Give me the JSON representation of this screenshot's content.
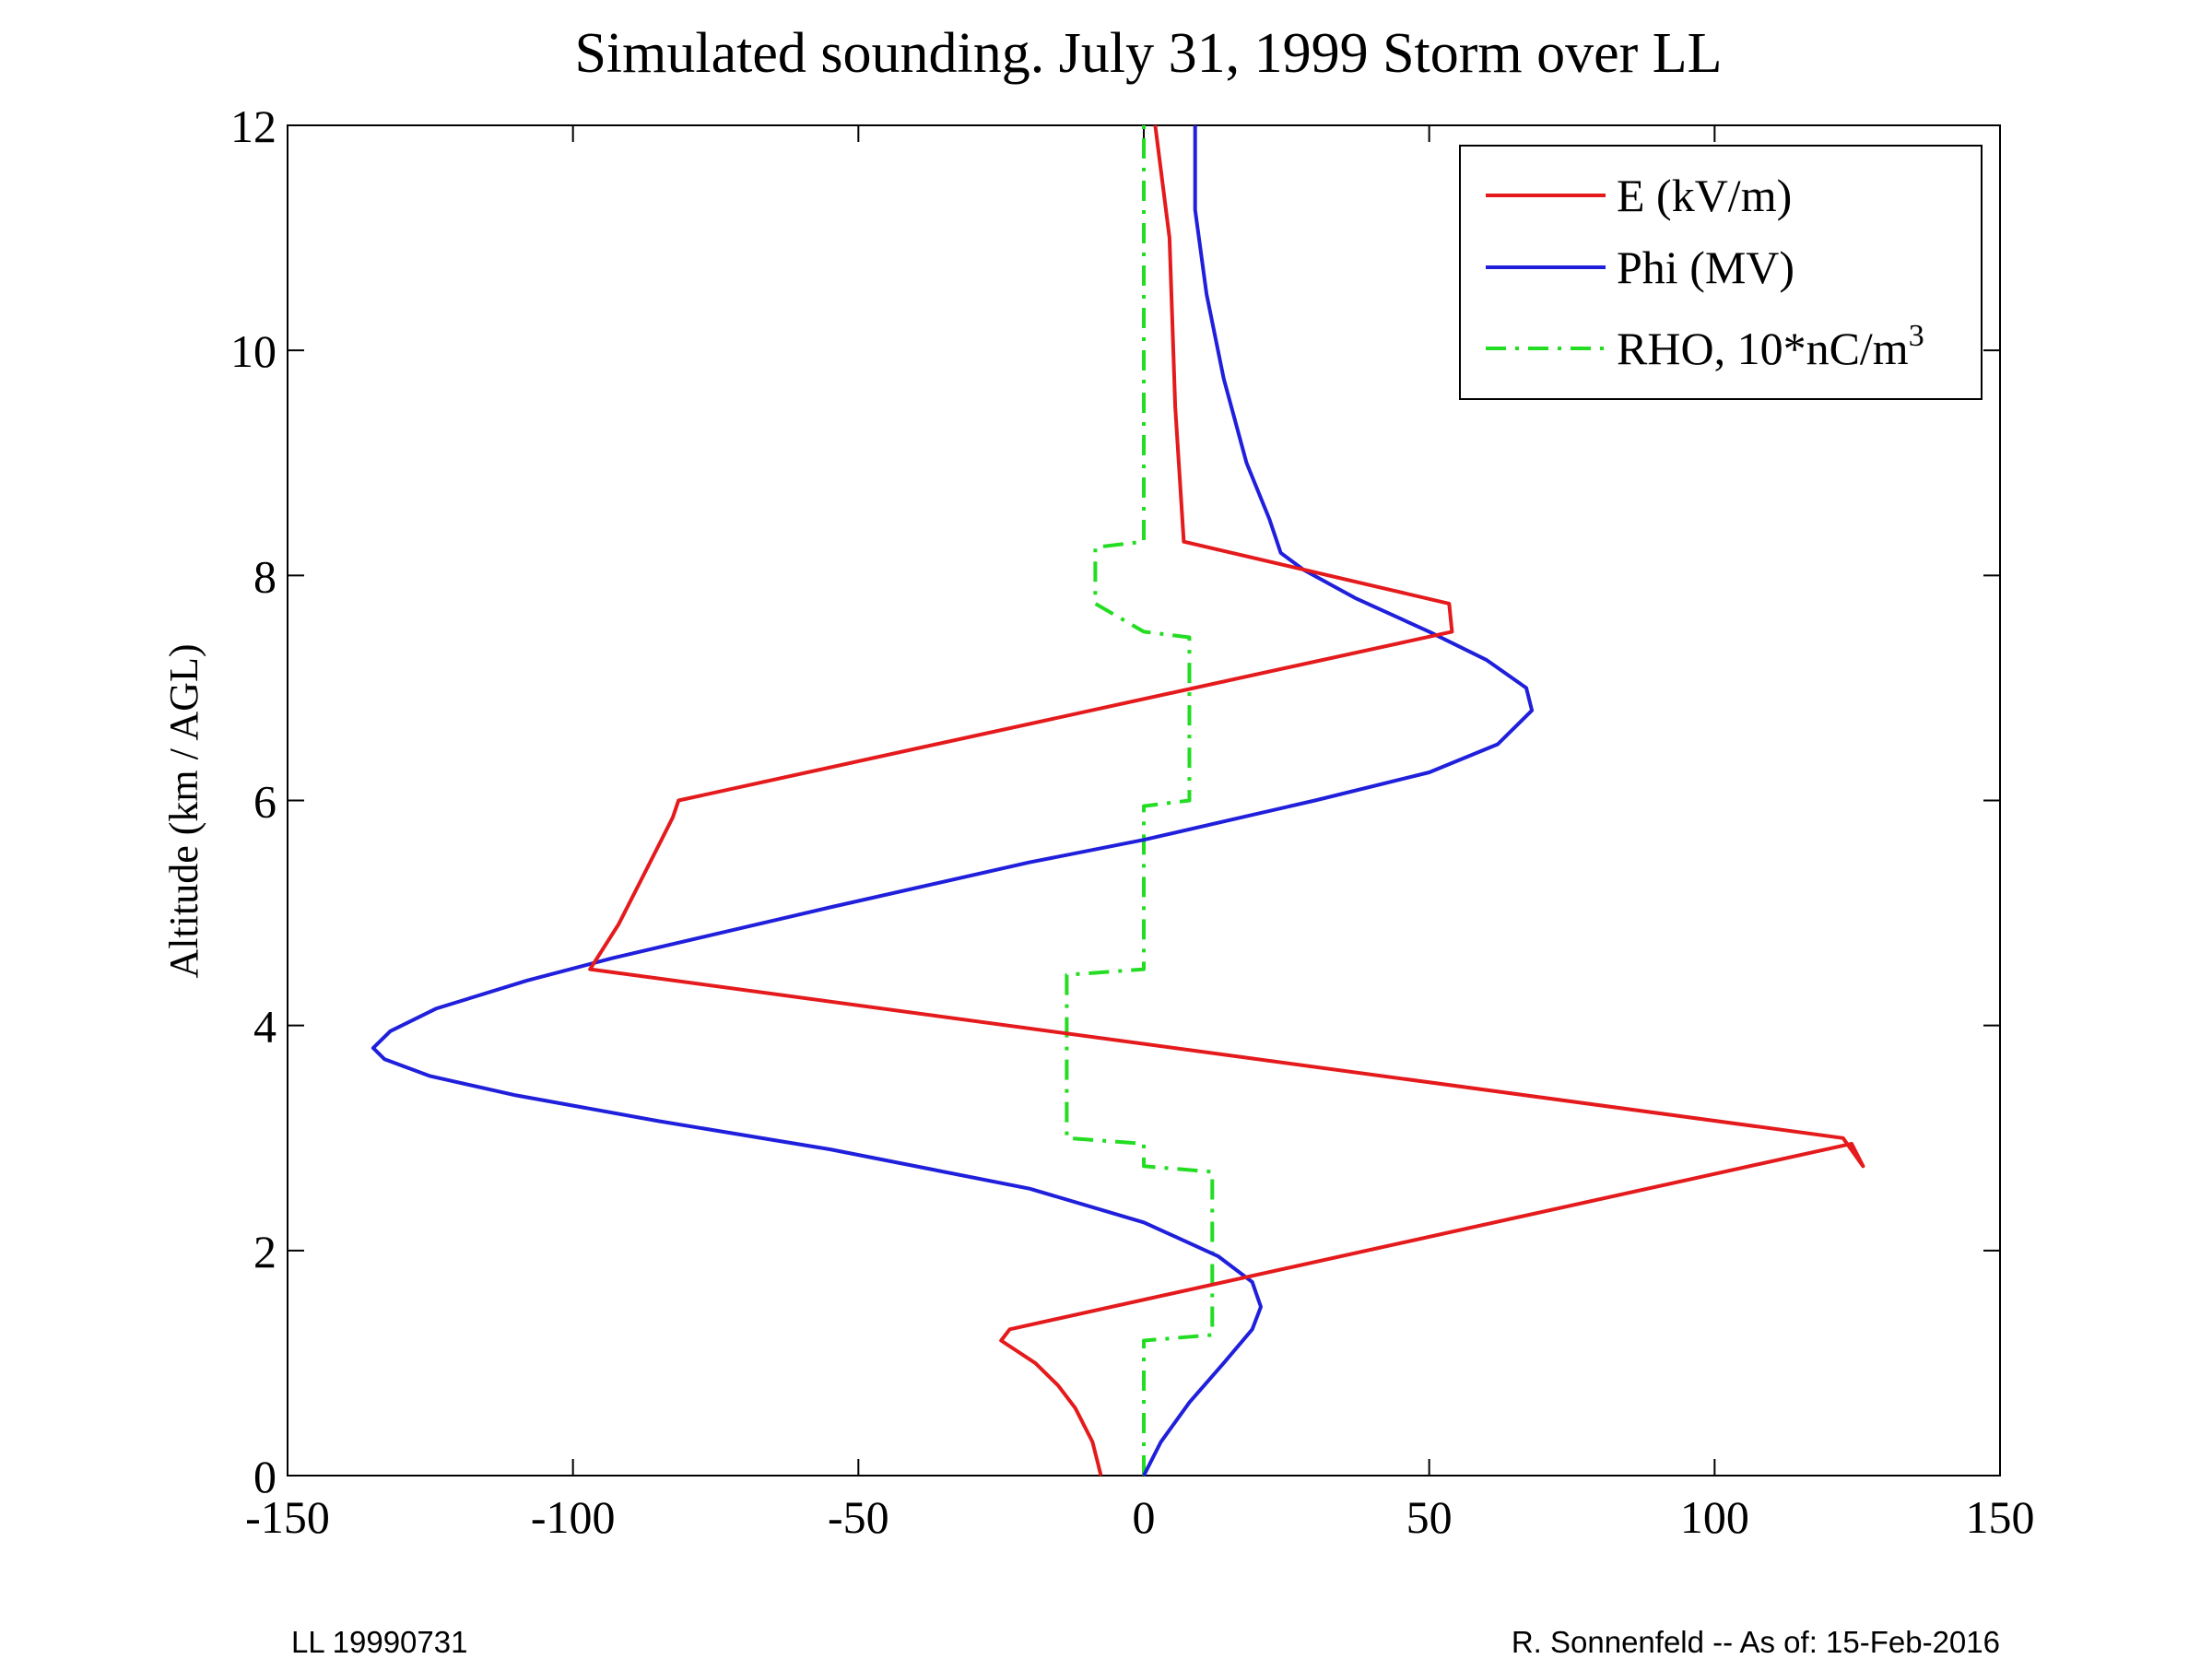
{
  "chart_data": {
    "type": "line",
    "title": "Simulated sounding.  July 31, 1999 Storm over LL",
    "xlabel": "",
    "ylabel": "Altitude (km / AGL)",
    "xlim": [
      -150,
      150
    ],
    "ylim": [
      0,
      12
    ],
    "xticks": [
      -150,
      -100,
      -50,
      0,
      50,
      100,
      150
    ],
    "yticks": [
      0,
      2,
      4,
      6,
      8,
      10,
      12
    ],
    "grid": false,
    "legend_position": "top-right",
    "series": [
      {
        "name": "E (kV/m)",
        "color": "#e41a1c",
        "style": "solid",
        "points": [
          [
            -7.5,
            0.0
          ],
          [
            -8,
            0.1
          ],
          [
            -9,
            0.3
          ],
          [
            -12,
            0.6
          ],
          [
            -15,
            0.8
          ],
          [
            -19,
            1.0
          ],
          [
            -25,
            1.2
          ],
          [
            -23.5,
            1.3
          ],
          [
            124,
            2.95
          ],
          [
            126,
            2.75
          ],
          [
            122.5,
            3.0
          ],
          [
            -97,
            4.5
          ],
          [
            -92,
            4.9
          ],
          [
            -88,
            5.3
          ],
          [
            -85,
            5.6
          ],
          [
            -82.5,
            5.85
          ],
          [
            -81.5,
            6.0
          ],
          [
            54,
            7.5
          ],
          [
            53.5,
            7.75
          ],
          [
            7,
            8.3
          ],
          [
            5.5,
            9.5
          ],
          [
            4.5,
            11.0
          ],
          [
            2,
            12.0
          ]
        ]
      },
      {
        "name": "Phi (MV)",
        "color": "#1f1fdc",
        "style": "solid",
        "points": [
          [
            0,
            0.0
          ],
          [
            3,
            0.3
          ],
          [
            8,
            0.65
          ],
          [
            14,
            1.0
          ],
          [
            19,
            1.3
          ],
          [
            20.5,
            1.5
          ],
          [
            19,
            1.72
          ],
          [
            13,
            1.95
          ],
          [
            0,
            2.25
          ],
          [
            -20,
            2.55
          ],
          [
            -55,
            2.9
          ],
          [
            -85,
            3.15
          ],
          [
            -110,
            3.38
          ],
          [
            -125,
            3.55
          ],
          [
            -133,
            3.7
          ],
          [
            -135,
            3.8
          ],
          [
            -132,
            3.95
          ],
          [
            -124,
            4.15
          ],
          [
            -108,
            4.4
          ],
          [
            -93,
            4.6
          ],
          [
            -55,
            5.05
          ],
          [
            -20,
            5.45
          ],
          [
            0,
            5.65
          ],
          [
            30,
            6.0
          ],
          [
            50,
            6.25
          ],
          [
            62,
            6.5
          ],
          [
            68,
            6.8
          ],
          [
            67,
            7.0
          ],
          [
            60,
            7.25
          ],
          [
            50,
            7.5
          ],
          [
            37,
            7.8
          ],
          [
            28,
            8.05
          ],
          [
            24,
            8.2
          ],
          [
            22,
            8.5
          ],
          [
            18,
            9.0
          ],
          [
            14,
            9.75
          ],
          [
            11,
            10.5
          ],
          [
            9,
            11.25
          ],
          [
            9,
            12.0
          ]
        ]
      },
      {
        "name": "RHO, 10*nC/m",
        "name_superscript": "3",
        "color": "#22dd22",
        "style": "dash-dot",
        "points": [
          [
            0,
            0.0
          ],
          [
            0,
            1.2
          ],
          [
            12,
            1.25
          ],
          [
            12,
            2.7
          ],
          [
            0,
            2.75
          ],
          [
            0,
            2.95
          ],
          [
            -13.5,
            3.0
          ],
          [
            -13.5,
            4.45
          ],
          [
            0,
            4.5
          ],
          [
            0,
            5.95
          ],
          [
            8,
            6.0
          ],
          [
            8,
            7.45
          ],
          [
            0,
            7.5
          ],
          [
            -8.5,
            7.75
          ],
          [
            -8.5,
            8.25
          ],
          [
            0,
            8.3
          ],
          [
            0,
            12.0
          ]
        ]
      }
    ],
    "footer_left": "LL  19990731",
    "footer_right": "R. Sonnenfeld -- As of: 15-Feb-2016"
  }
}
